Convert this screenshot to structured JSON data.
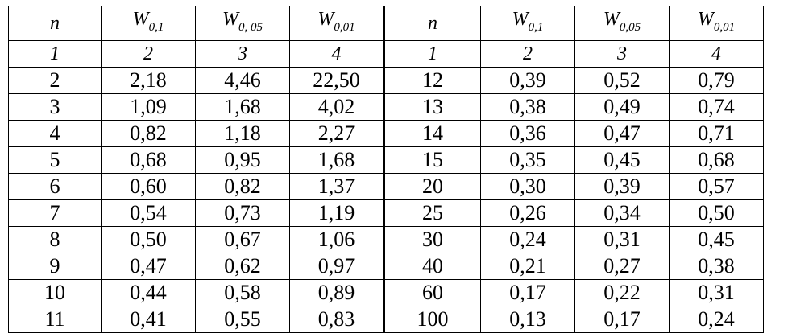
{
  "header": {
    "left": {
      "n": "n",
      "w1": "W",
      "w1_sub": "0,1",
      "w2": "W",
      "w2_sub": "0, 05",
      "w3": "W",
      "w3_sub": "0,01"
    },
    "right": {
      "n": "n",
      "w1": "W",
      "w1_sub": "0,1",
      "w2": "W",
      "w2_sub": "0,05",
      "w3": "W",
      "w3_sub": "0,01"
    }
  },
  "col_numbers": {
    "left": [
      "1",
      "2",
      "3",
      "4"
    ],
    "right": [
      "1",
      "2",
      "3",
      "4"
    ]
  },
  "rows": [
    {
      "left": [
        "2",
        "2,18",
        "4,46",
        "22,50"
      ],
      "right": [
        "12",
        "0,39",
        "0,52",
        "0,79"
      ]
    },
    {
      "left": [
        "3",
        "1,09",
        "1,68",
        "4,02"
      ],
      "right": [
        "13",
        "0,38",
        "0,49",
        "0,74"
      ]
    },
    {
      "left": [
        "4",
        "0,82",
        "1,18",
        "2,27"
      ],
      "right": [
        "14",
        "0,36",
        "0,47",
        "0,71"
      ]
    },
    {
      "left": [
        "5",
        "0,68",
        "0,95",
        "1,68"
      ],
      "right": [
        "15",
        "0,35",
        "0,45",
        "0,68"
      ]
    },
    {
      "left": [
        "6",
        "0,60",
        "0,82",
        "1,37"
      ],
      "right": [
        "20",
        "0,30",
        "0,39",
        "0,57"
      ]
    },
    {
      "left": [
        "7",
        "0,54",
        "0,73",
        "1,19"
      ],
      "right": [
        "25",
        "0,26",
        "0,34",
        "0,50"
      ]
    },
    {
      "left": [
        "8",
        "0,50",
        "0,67",
        "1,06"
      ],
      "right": [
        "30",
        "0,24",
        "0,31",
        "0,45"
      ]
    },
    {
      "left": [
        "9",
        "0,47",
        "0,62",
        "0,97"
      ],
      "right": [
        "40",
        "0,21",
        "0,27",
        "0,38"
      ]
    },
    {
      "left": [
        "10",
        "0,44",
        "0,58",
        "0,89"
      ],
      "right": [
        "60",
        "0,17",
        "0,22",
        "0,31"
      ]
    },
    {
      "left": [
        "11",
        "0,41",
        "0,55",
        "0,83"
      ],
      "right": [
        "100",
        "0,13",
        "0,17",
        "0,24"
      ]
    }
  ]
}
